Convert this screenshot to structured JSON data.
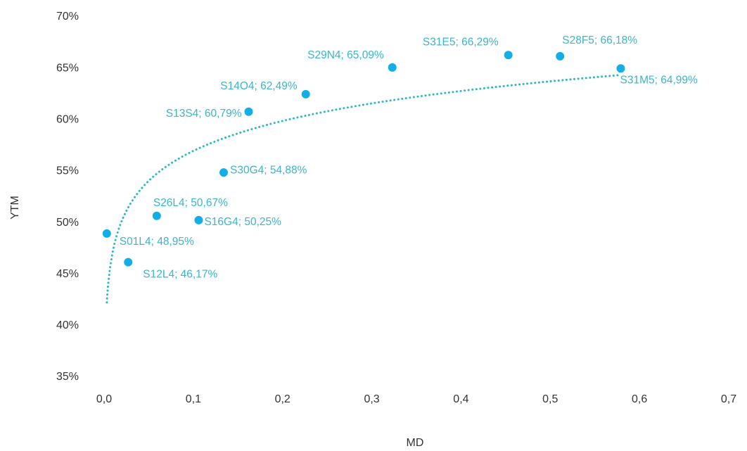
{
  "chart_data": {
    "type": "scatter",
    "xlabel": "MD",
    "ylabel": "YTM",
    "x": [
      0.003,
      0.027,
      0.059,
      0.106,
      0.134,
      0.162,
      0.226,
      0.323,
      0.453,
      0.511,
      0.579
    ],
    "values": [
      48.95,
      46.17,
      50.67,
      50.25,
      54.88,
      60.79,
      62.49,
      65.09,
      66.29,
      66.18,
      64.99
    ],
    "value_labels": [
      "S01L4; 48,95%",
      "S12L4; 46,17%",
      "S26L4; 50,67%",
      "S16G4; 50,25%",
      "S30G4; 54,88%",
      "S13S4; 60,79%",
      "S14O4; 62,49%",
      "S29N4; 65,09%",
      "S31E5; 66,29%",
      "S28F5; 66,18%",
      "S31M5; 64,99%"
    ],
    "color": "#14aee6",
    "label_color": "#3ab5c9",
    "trendline": {
      "type": "logarithmic",
      "color": "#2fb6c4"
    },
    "xlim": [
      0,
      0.7
    ],
    "xticks": [
      {
        "value": 0,
        "label": "0,0"
      },
      {
        "value": 0.1,
        "label": "0,1"
      },
      {
        "value": 0.2,
        "label": "0,2"
      },
      {
        "value": 0.3,
        "label": "0,3"
      },
      {
        "value": 0.4,
        "label": "0,4"
      },
      {
        "value": 0.5,
        "label": "0,5"
      },
      {
        "value": 0.6,
        "label": "0,6"
      },
      {
        "value": 0.7,
        "label": "0,7"
      }
    ],
    "ylim": [
      35,
      70
    ],
    "yticks": [
      {
        "value": 35,
        "label": "35%"
      },
      {
        "value": 40,
        "label": "40%"
      },
      {
        "value": 45,
        "label": "45%"
      },
      {
        "value": 50,
        "label": "50%"
      },
      {
        "value": 55,
        "label": "55%"
      },
      {
        "value": 60,
        "label": "60%"
      },
      {
        "value": 65,
        "label": "65%"
      },
      {
        "value": 70,
        "label": "70%"
      }
    ],
    "grid": false
  }
}
